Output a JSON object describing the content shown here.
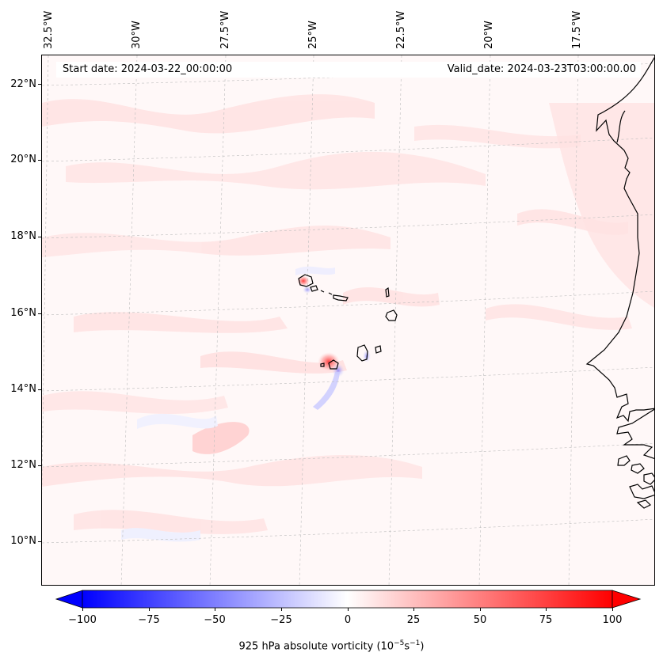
{
  "map": {
    "start_date": "Start date: 2024-03-22_00:00:00",
    "valid_date": "Valid_date: 2024-03-23T03:00:00.00",
    "longitude_labels": [
      "32.5°W",
      "30°W",
      "27.5°W",
      "25°W",
      "22.5°W",
      "20°W",
      "17.5°W"
    ],
    "latitude_labels": [
      "22°N",
      "20°N",
      "18°N",
      "16°N",
      "14°N",
      "12°N",
      "10°N"
    ]
  },
  "colorbar": {
    "tick_labels": [
      "−100",
      "−75",
      "−50",
      "−25",
      "0",
      "25",
      "50",
      "75",
      "100"
    ],
    "label_text": "925 hPa absolute vorticity (10",
    "label_exp1": "−5",
    "label_mid": "s",
    "label_exp2": "−1",
    "label_close": ")",
    "min_color": "#0000ff",
    "max_color": "#ff0000"
  }
}
